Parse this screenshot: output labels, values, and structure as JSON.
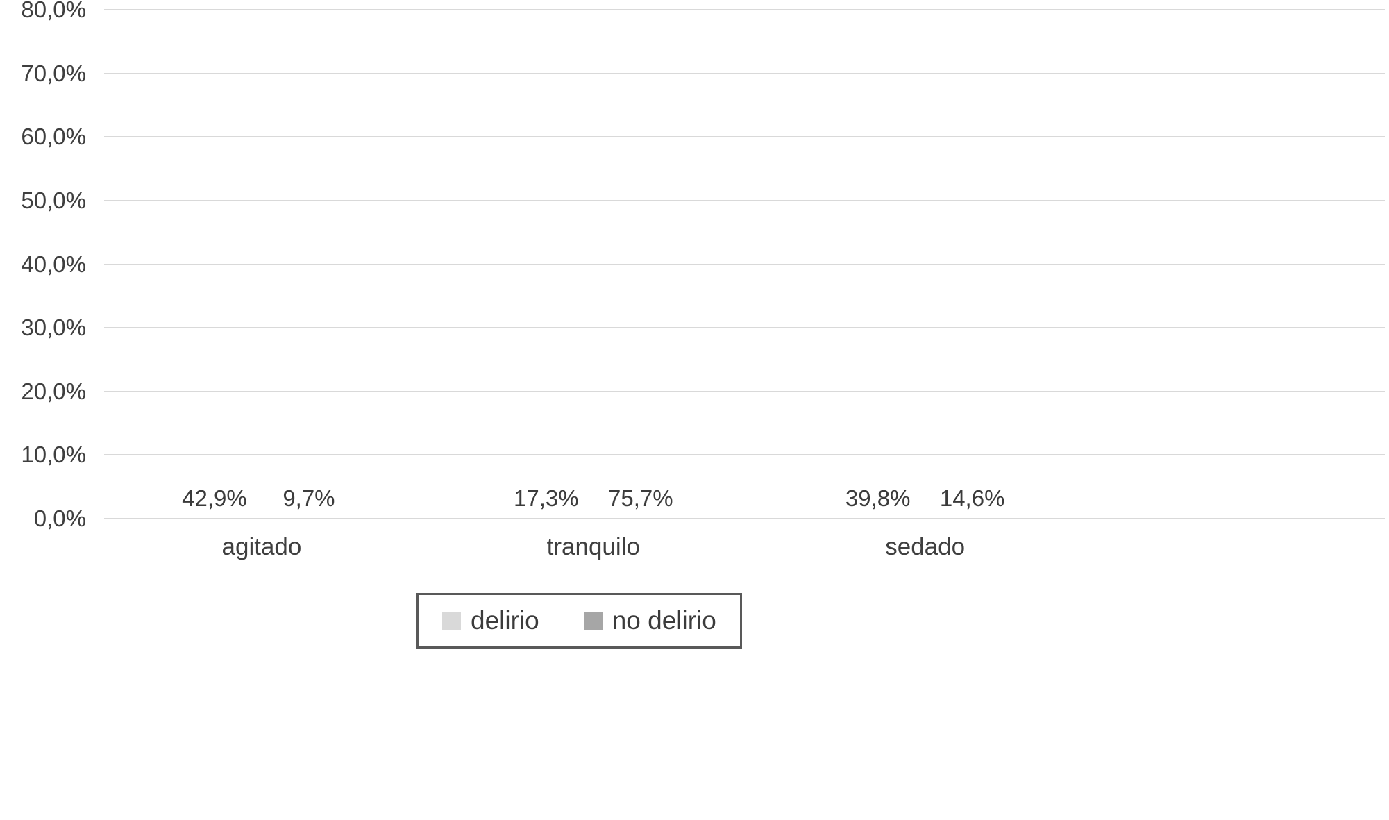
{
  "chart_data": {
    "type": "bar",
    "title": "",
    "xlabel": "",
    "ylabel": "",
    "categories": [
      "agitado",
      "tranquilo",
      "sedado"
    ],
    "series": [
      {
        "name": "delirio",
        "color": "#d9d9d9",
        "values": [
          42.9,
          17.3,
          39.8
        ],
        "value_labels": [
          "42,9%",
          "17,3%",
          "39,8%"
        ]
      },
      {
        "name": "no delirio",
        "color": "#a6a6a6",
        "values": [
          9.7,
          75.7,
          14.6
        ],
        "value_labels": [
          "9,7%",
          "75,7%",
          "14,6%"
        ]
      }
    ],
    "y_axis": {
      "min": 0,
      "max": 80,
      "step": 10,
      "tick_labels": [
        "0,0%",
        "10,0%",
        "20,0%",
        "30,0%",
        "40,0%",
        "50,0%",
        "60,0%",
        "70,0%",
        "80,0%"
      ]
    },
    "grid": true,
    "legend_position": "bottom"
  },
  "colors": {
    "bar_delirio": "#d9d9d9",
    "bar_no_delirio": "#a6a6a6",
    "gridline": "#d9d9d9",
    "text": "#3f3f3f",
    "legend_border": "#595959",
    "background": "#ffffff"
  }
}
